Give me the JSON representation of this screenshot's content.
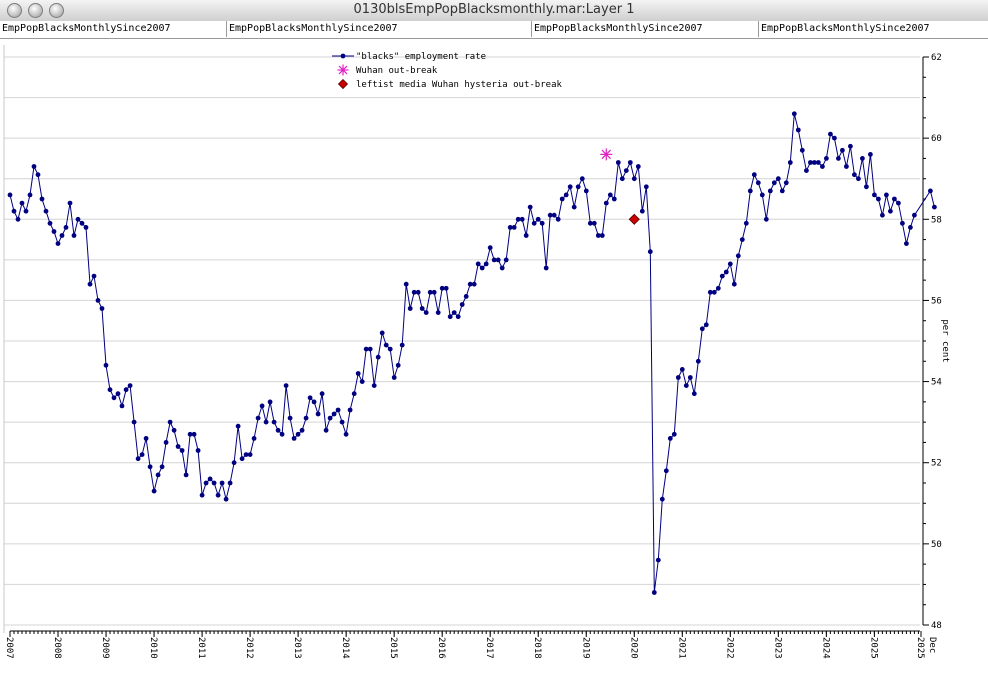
{
  "window": {
    "title": "0130blsEmpPopBlacksmonthly.mar:Layer 1",
    "tabs": [
      "EmpPopBlacksMonthlySince2007",
      "EmpPopBlacksMonthlySince2007",
      "EmpPopBlacksMonthlySince2007",
      "EmpPopBlacksMonthlySince2007"
    ]
  },
  "chart_data": {
    "type": "line",
    "ylabel": "per cent",
    "ylim": [
      48,
      62
    ],
    "yticks": [
      48,
      50,
      52,
      54,
      56,
      58,
      60,
      62
    ],
    "xlim": [
      2007,
      2025.95
    ],
    "x_tick_labels": [
      "2007",
      "2008",
      "2009",
      "2010",
      "2011",
      "2012",
      "2013",
      "2014",
      "2015",
      "2016",
      "2017",
      "2018",
      "2019",
      "2020",
      "2021",
      "2022",
      "2023",
      "2024",
      "2025",
      "2025"
    ],
    "x_end_label": "Dec",
    "grid": true,
    "legend_position": "top-center",
    "colors": {
      "series": "#000080",
      "wuhan": "#e020c0",
      "hysteria": "#cc0000"
    },
    "series": [
      {
        "name": "\"blacks\" employment rate",
        "start": "2007-01",
        "frequency": "monthly",
        "values": [
          58.6,
          58.2,
          58.0,
          58.4,
          58.2,
          58.6,
          59.3,
          59.1,
          58.5,
          58.2,
          57.9,
          57.7,
          57.4,
          57.6,
          57.8,
          58.4,
          57.6,
          58.0,
          57.9,
          57.8,
          56.4,
          56.6,
          56.0,
          55.8,
          54.4,
          53.8,
          53.6,
          53.7,
          53.4,
          53.8,
          53.9,
          53.0,
          52.1,
          52.2,
          52.6,
          51.9,
          51.3,
          51.7,
          51.9,
          52.5,
          53.0,
          52.8,
          52.4,
          52.3,
          51.7,
          52.7,
          52.7,
          52.3,
          51.2,
          51.5,
          51.6,
          51.5,
          51.2,
          51.5,
          51.1,
          51.5,
          52.0,
          52.9,
          52.1,
          52.2,
          52.2,
          52.6,
          53.1,
          53.4,
          53.0,
          53.5,
          53.0,
          52.8,
          52.7,
          53.9,
          53.1,
          52.6,
          52.7,
          52.8,
          53.1,
          53.6,
          53.5,
          53.2,
          53.7,
          52.8,
          53.1,
          53.2,
          53.3,
          53.0,
          52.7,
          53.3,
          53.7,
          54.2,
          54.0,
          54.8,
          54.8,
          53.9,
          54.6,
          55.2,
          54.9,
          54.8,
          54.1,
          54.4,
          54.9,
          56.4,
          55.8,
          56.2,
          56.2,
          55.8,
          55.7,
          56.2,
          56.2,
          55.7,
          56.3,
          56.3,
          55.6,
          55.7,
          55.6,
          55.9,
          56.1,
          56.4,
          56.4,
          56.9,
          56.8,
          56.9,
          57.3,
          57.0,
          57.0,
          56.8,
          57.0,
          57.8,
          57.8,
          58.0,
          58.0,
          57.6,
          58.3,
          57.9,
          58.0,
          57.9,
          56.8,
          58.1,
          58.1,
          58.0,
          58.5,
          58.6,
          58.8,
          58.3,
          58.8,
          59.0,
          58.7,
          57.9,
          57.9,
          57.6,
          57.6,
          58.4,
          58.6,
          58.5,
          59.4,
          59.0,
          59.2,
          59.4,
          59.0,
          59.3,
          58.2,
          58.8,
          57.2,
          48.8,
          49.6,
          51.1,
          51.8,
          52.6,
          52.7,
          54.1,
          54.3,
          53.9,
          54.1,
          53.7,
          54.5,
          55.3,
          55.4,
          56.2,
          56.2,
          56.3,
          56.6,
          56.7,
          56.9,
          56.4,
          57.1,
          57.5,
          57.9,
          58.7,
          59.1,
          58.9,
          58.6,
          58.0,
          58.7,
          58.9,
          59.0,
          58.7,
          58.9,
          59.4,
          60.6,
          60.2,
          59.7,
          59.2,
          59.4,
          59.4,
          59.4,
          59.3,
          59.5,
          60.1,
          60.0,
          59.5,
          59.7,
          59.3,
          59.8,
          59.1,
          59.0,
          59.5,
          58.8,
          59.6,
          58.6,
          58.5,
          58.1,
          58.6,
          58.2,
          58.5,
          58.4,
          57.9,
          57.4,
          57.8,
          58.1,
          null,
          null,
          null,
          58.7,
          58.3
        ]
      }
    ],
    "markers": [
      {
        "name": "Wuhan out-break",
        "x": "2019-06",
        "y": 59.6,
        "symbol": "asterisk",
        "color": "#e020c0"
      },
      {
        "name": "leftist media Wuhan hysteria out-break",
        "x": "2020-01",
        "y": 58.0,
        "symbol": "diamond",
        "color": "#cc0000"
      }
    ]
  }
}
